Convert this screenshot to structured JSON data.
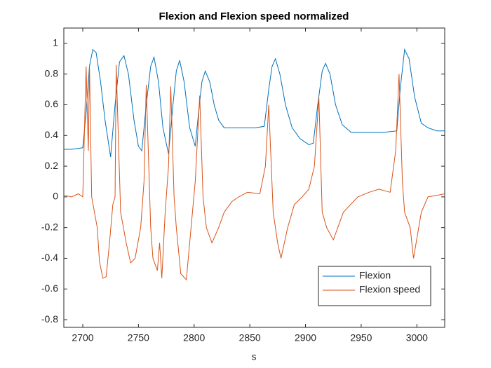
{
  "chart_data": {
    "type": "line",
    "title": "Flexion and Flexion speed normalized",
    "xlabel": "s",
    "xlim": [
      2683,
      3025
    ],
    "ylim": [
      -0.85,
      1.1
    ],
    "xticks": [
      2700,
      2750,
      2800,
      2850,
      2900,
      2950,
      3000
    ],
    "yticks": [
      -0.8,
      -0.6,
      -0.4,
      -0.2,
      0,
      0.2,
      0.4,
      0.6,
      0.8,
      1
    ],
    "legend": "lower right",
    "series": [
      {
        "name": "Flexion",
        "color": "#0072bd",
        "x": [
          2683,
          2690,
          2700,
          2703,
          2706,
          2709,
          2712,
          2716,
          2720,
          2725,
          2729,
          2733,
          2737,
          2741,
          2746,
          2750,
          2753,
          2757,
          2761,
          2764,
          2768,
          2772,
          2777,
          2781,
          2784,
          2787,
          2791,
          2796,
          2801,
          2804,
          2807,
          2810,
          2814,
          2818,
          2822,
          2827,
          2835,
          2845,
          2855,
          2863,
          2867,
          2870,
          2873,
          2877,
          2882,
          2888,
          2895,
          2903,
          2907,
          2911,
          2915,
          2918,
          2922,
          2927,
          2933,
          2941,
          2950,
          2960,
          2970,
          2982,
          2985,
          2989,
          2993,
          2998,
          3004,
          3010,
          3018,
          3025
        ],
        "values": [
          0.31,
          0.31,
          0.32,
          0.55,
          0.85,
          0.96,
          0.94,
          0.75,
          0.5,
          0.26,
          0.6,
          0.88,
          0.92,
          0.8,
          0.5,
          0.33,
          0.3,
          0.6,
          0.85,
          0.91,
          0.75,
          0.45,
          0.28,
          0.6,
          0.82,
          0.89,
          0.75,
          0.45,
          0.33,
          0.55,
          0.75,
          0.82,
          0.75,
          0.6,
          0.5,
          0.45,
          0.45,
          0.45,
          0.45,
          0.46,
          0.7,
          0.85,
          0.9,
          0.8,
          0.6,
          0.45,
          0.38,
          0.34,
          0.35,
          0.6,
          0.82,
          0.87,
          0.8,
          0.6,
          0.47,
          0.42,
          0.42,
          0.42,
          0.42,
          0.43,
          0.7,
          0.96,
          0.9,
          0.65,
          0.48,
          0.45,
          0.43,
          0.43
        ]
      },
      {
        "name": "Flexion speed",
        "color": "#d95319",
        "x": [
          2683,
          2690,
          2696,
          2700,
          2703,
          2705,
          2706,
          2708,
          2713,
          2715,
          2718,
          2721,
          2724,
          2727,
          2729,
          2730,
          2734,
          2739,
          2743,
          2747,
          2752,
          2755,
          2757,
          2761,
          2763,
          2767,
          2769,
          2771,
          2774,
          2777,
          2779,
          2782,
          2784,
          2788,
          2793,
          2796,
          2801,
          2805,
          2808,
          2811,
          2816,
          2822,
          2827,
          2834,
          2840,
          2848,
          2859,
          2864,
          2867,
          2871,
          2875,
          2878,
          2884,
          2890,
          2897,
          2903,
          2908,
          2912,
          2915,
          2919,
          2925,
          2934,
          2947,
          2957,
          2966,
          2976,
          2981,
          2984,
          2987,
          2989,
          2994,
          2997,
          3004,
          3010,
          3018,
          3025
        ],
        "values": [
          0.01,
          0.0,
          0.02,
          0.0,
          0.85,
          0.3,
          0.86,
          0.0,
          -0.2,
          -0.42,
          -0.53,
          -0.52,
          -0.3,
          -0.05,
          0.0,
          0.86,
          -0.1,
          -0.3,
          -0.43,
          -0.4,
          -0.2,
          0.1,
          0.73,
          -0.2,
          -0.4,
          -0.48,
          -0.3,
          -0.53,
          -0.1,
          0.2,
          0.72,
          0.0,
          -0.2,
          -0.5,
          -0.54,
          -0.3,
          0.1,
          0.66,
          0.0,
          -0.2,
          -0.3,
          -0.2,
          -0.1,
          -0.03,
          0.0,
          0.03,
          0.02,
          0.2,
          0.6,
          -0.1,
          -0.3,
          -0.4,
          -0.2,
          -0.05,
          0.0,
          0.05,
          0.2,
          0.65,
          -0.1,
          -0.2,
          -0.28,
          -0.1,
          0.0,
          0.03,
          0.05,
          0.03,
          0.3,
          0.8,
          0.1,
          -0.1,
          -0.2,
          -0.4,
          -0.1,
          0.0,
          0.01,
          0.02
        ]
      }
    ]
  }
}
